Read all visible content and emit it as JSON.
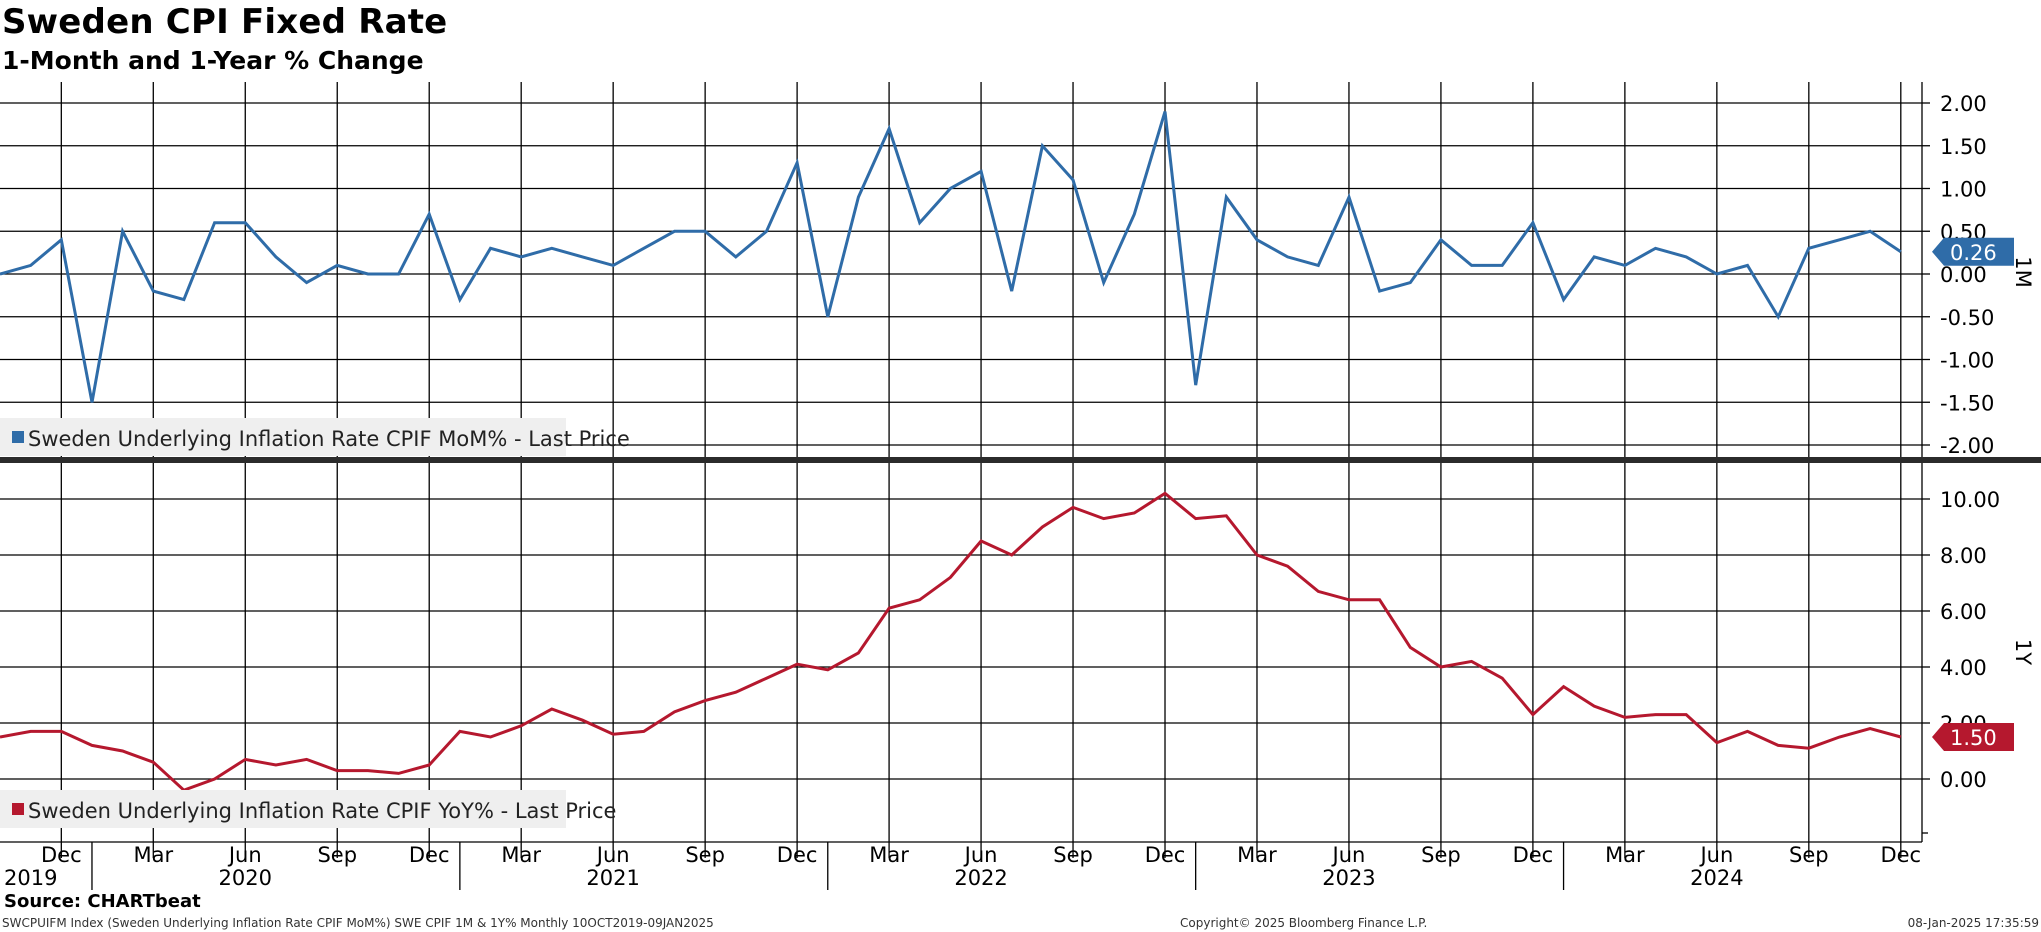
{
  "header": {
    "title": "Sweden CPI Fixed Rate",
    "subtitle": "1-Month and 1-Year % Change"
  },
  "footer": {
    "source": "Source: CHARTbeat",
    "ticker_info": "SWCPUIFM Index (Sweden Underlying Inflation Rate CPIF MoM%) SWE CPIF 1M & 1Y%  Monthly 10OCT2019-09JAN2025",
    "copyright": "Copyright© 2025 Bloomberg Finance L.P.",
    "timestamp": "08-Jan-2025 17:35:59"
  },
  "chart_data": [
    {
      "type": "line",
      "axis_label": "1M",
      "ylim": [
        -2.0,
        2.0
      ],
      "yticks": [
        "2.00",
        "1.50",
        "1.00",
        "0.50",
        "0.00",
        "-0.50",
        "-1.00",
        "-1.50",
        "-2.00"
      ],
      "ytick_values": [
        2.0,
        1.5,
        1.0,
        0.5,
        0.0,
        -0.5,
        -1.0,
        -1.5,
        -2.0
      ],
      "last_value_label": "0.26",
      "series": [
        {
          "name": "Sweden Underlying Inflation Rate CPIF MoM% - Last Price",
          "color": "#2f6ca8",
          "x": [
            "2019-10",
            "2019-11",
            "2019-12",
            "2020-01",
            "2020-02",
            "2020-03",
            "2020-04",
            "2020-05",
            "2020-06",
            "2020-07",
            "2020-08",
            "2020-09",
            "2020-10",
            "2020-11",
            "2020-12",
            "2021-01",
            "2021-02",
            "2021-03",
            "2021-04",
            "2021-05",
            "2021-06",
            "2021-07",
            "2021-08",
            "2021-09",
            "2021-10",
            "2021-11",
            "2021-12",
            "2022-01",
            "2022-02",
            "2022-03",
            "2022-04",
            "2022-05",
            "2022-06",
            "2022-07",
            "2022-08",
            "2022-09",
            "2022-10",
            "2022-11",
            "2022-12",
            "2023-01",
            "2023-02",
            "2023-03",
            "2023-04",
            "2023-05",
            "2023-06",
            "2023-07",
            "2023-08",
            "2023-09",
            "2023-10",
            "2023-11",
            "2023-12",
            "2024-01",
            "2024-02",
            "2024-03",
            "2024-04",
            "2024-05",
            "2024-06",
            "2024-07",
            "2024-08",
            "2024-09",
            "2024-10",
            "2024-11",
            "2024-12"
          ],
          "values": [
            0.0,
            0.1,
            0.4,
            -1.5,
            0.5,
            -0.2,
            -0.3,
            0.6,
            0.6,
            0.2,
            -0.1,
            0.1,
            0.0,
            0.0,
            0.7,
            -0.3,
            0.3,
            0.2,
            0.3,
            0.2,
            0.1,
            0.3,
            0.5,
            0.5,
            0.2,
            0.5,
            1.3,
            -0.5,
            0.9,
            1.7,
            0.6,
            1.0,
            1.2,
            -0.2,
            1.5,
            1.1,
            -0.1,
            0.7,
            1.9,
            -1.3,
            0.9,
            0.4,
            0.2,
            0.1,
            0.9,
            -0.2,
            -0.1,
            0.4,
            0.1,
            0.1,
            0.6,
            -0.3,
            0.2,
            0.1,
            0.3,
            0.2,
            0.0,
            0.1,
            -0.5,
            0.3,
            0.4,
            0.5,
            0.26
          ]
        }
      ]
    },
    {
      "type": "line",
      "axis_label": "1Y",
      "ylim": [
        -2.0,
        11.0
      ],
      "yticks": [
        "10.00",
        "8.00",
        "6.00",
        "4.00",
        "2.00",
        "0.00"
      ],
      "ytick_values": [
        10.0,
        8.0,
        6.0,
        4.0,
        2.0,
        0.0
      ],
      "last_value_label": "1.50",
      "series": [
        {
          "name": "Sweden Underlying Inflation Rate CPIF YoY% - Last Price",
          "color": "#b5182e",
          "x": [
            "2019-10",
            "2019-11",
            "2019-12",
            "2020-01",
            "2020-02",
            "2020-03",
            "2020-04",
            "2020-05",
            "2020-06",
            "2020-07",
            "2020-08",
            "2020-09",
            "2020-10",
            "2020-11",
            "2020-12",
            "2021-01",
            "2021-02",
            "2021-03",
            "2021-04",
            "2021-05",
            "2021-06",
            "2021-07",
            "2021-08",
            "2021-09",
            "2021-10",
            "2021-11",
            "2021-12",
            "2022-01",
            "2022-02",
            "2022-03",
            "2022-04",
            "2022-05",
            "2022-06",
            "2022-07",
            "2022-08",
            "2022-09",
            "2022-10",
            "2022-11",
            "2022-12",
            "2023-01",
            "2023-02",
            "2023-03",
            "2023-04",
            "2023-05",
            "2023-06",
            "2023-07",
            "2023-08",
            "2023-09",
            "2023-10",
            "2023-11",
            "2023-12",
            "2024-01",
            "2024-02",
            "2024-03",
            "2024-04",
            "2024-05",
            "2024-06",
            "2024-07",
            "2024-08",
            "2024-09",
            "2024-10",
            "2024-11",
            "2024-12"
          ],
          "values": [
            1.5,
            1.7,
            1.7,
            1.2,
            1.0,
            0.6,
            -0.4,
            0.0,
            0.7,
            0.5,
            0.7,
            0.3,
            0.3,
            0.2,
            0.5,
            1.7,
            1.5,
            1.9,
            2.5,
            2.1,
            1.6,
            1.7,
            2.4,
            2.8,
            3.1,
            3.6,
            4.1,
            3.9,
            4.5,
            6.1,
            6.4,
            7.2,
            8.5,
            8.0,
            9.0,
            9.7,
            9.3,
            9.5,
            10.2,
            9.3,
            9.4,
            8.0,
            7.6,
            6.7,
            6.4,
            6.4,
            4.7,
            4.0,
            4.2,
            3.6,
            2.3,
            3.3,
            2.6,
            2.2,
            2.3,
            2.3,
            1.3,
            1.7,
            1.2,
            1.1,
            1.5,
            1.8,
            1.5
          ]
        }
      ]
    }
  ],
  "x_axis": {
    "month_ticks": [
      {
        "date": "2019-12",
        "label": "Dec"
      },
      {
        "date": "2020-03",
        "label": "Mar"
      },
      {
        "date": "2020-06",
        "label": "Jun"
      },
      {
        "date": "2020-09",
        "label": "Sep"
      },
      {
        "date": "2020-12",
        "label": "Dec"
      },
      {
        "date": "2021-03",
        "label": "Mar"
      },
      {
        "date": "2021-06",
        "label": "Jun"
      },
      {
        "date": "2021-09",
        "label": "Sep"
      },
      {
        "date": "2021-12",
        "label": "Dec"
      },
      {
        "date": "2022-03",
        "label": "Mar"
      },
      {
        "date": "2022-06",
        "label": "Jun"
      },
      {
        "date": "2022-09",
        "label": "Sep"
      },
      {
        "date": "2022-12",
        "label": "Dec"
      },
      {
        "date": "2023-03",
        "label": "Mar"
      },
      {
        "date": "2023-06",
        "label": "Jun"
      },
      {
        "date": "2023-09",
        "label": "Sep"
      },
      {
        "date": "2023-12",
        "label": "Dec"
      },
      {
        "date": "2024-03",
        "label": "Mar"
      },
      {
        "date": "2024-06",
        "label": "Jun"
      },
      {
        "date": "2024-09",
        "label": "Sep"
      },
      {
        "date": "2024-12",
        "label": "Dec"
      }
    ],
    "year_labels": [
      {
        "date": "2019-10",
        "label": "2019"
      },
      {
        "date": "2020-06",
        "label": "2020"
      },
      {
        "date": "2021-06",
        "label": "2021"
      },
      {
        "date": "2022-06",
        "label": "2022"
      },
      {
        "date": "2023-06",
        "label": "2023"
      },
      {
        "date": "2024-06",
        "label": "2024"
      }
    ],
    "year_boundaries": [
      "2020-01",
      "2021-01",
      "2022-01",
      "2023-01",
      "2024-01"
    ]
  }
}
